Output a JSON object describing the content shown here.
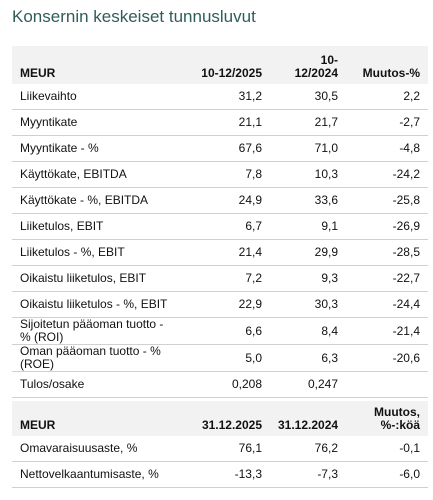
{
  "title": "Konsernin keskeiset tunnusluvut",
  "table1": {
    "headers": [
      "MEUR",
      "10-12/2025",
      "10-12/2024",
      "Muutos-%"
    ],
    "rows": [
      [
        "Liikevaihto",
        "31,2",
        "30,5",
        "2,2"
      ],
      [
        "Myyntikate",
        "21,1",
        "21,7",
        "-2,7"
      ],
      [
        "Myyntikate - %",
        "67,6",
        "71,0",
        "-4,8"
      ],
      [
        "Käyttökate, EBITDA",
        "7,8",
        "10,3",
        "-24,2"
      ],
      [
        "Käyttökate - %, EBITDA",
        "24,9",
        "33,6",
        "-25,8"
      ],
      [
        "Liiketulos, EBIT",
        "6,7",
        "9,1",
        "-26,9"
      ],
      [
        "Liiketulos - %, EBIT",
        "21,4",
        "29,9",
        "-28,5"
      ],
      [
        "Oikaistu liiketulos, EBIT",
        "7,2",
        "9,3",
        "-22,7"
      ],
      [
        "Oikaistu liiketulos - %, EBIT",
        "22,9",
        "30,3",
        "-24,4"
      ],
      [
        "Sijoitetun pääoman tuotto - % (ROI)",
        "6,6",
        "8,4",
        "-21,4"
      ],
      [
        "Oman pääoman tuotto - % (ROE)",
        "5,0",
        "6,3",
        "-20,6"
      ],
      [
        "Tulos/osake",
        "0,208",
        "0,247",
        null
      ]
    ]
  },
  "table2": {
    "headers": [
      "MEUR",
      "31.12.2025",
      "31.12.2024",
      "Muutos, %-:köä"
    ],
    "rows": [
      [
        "Omavaraisuusaste, %",
        "76,1",
        "76,2",
        "-0,1"
      ],
      [
        "Nettovelkaantumisaste, %",
        "-13,3",
        "-7,3",
        "-6,0"
      ]
    ]
  }
}
